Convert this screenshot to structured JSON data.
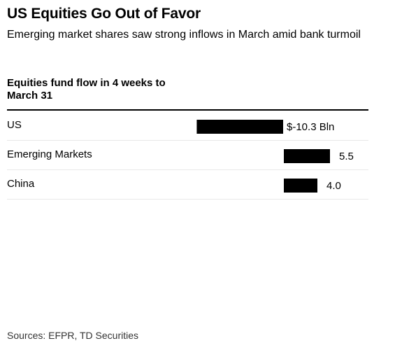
{
  "title": "US Equities Go Out of Favor",
  "subtitle": "Emerging market shares saw strong inflows in March amid bank turmoil",
  "column_header": "Equities fund flow in 4 weeks to March 31",
  "sources": "Sources: EFPR, TD Securities",
  "colors": {
    "bar": "#000000",
    "text": "#000000",
    "rule": "#000000"
  },
  "chart_data": {
    "type": "bar",
    "orientation": "horizontal",
    "title": "Equities fund flow in 4 weeks to March 31",
    "categories": [
      "US",
      "Emerging Markets",
      "China"
    ],
    "values": [
      -10.3,
      5.5,
      4.0
    ],
    "value_labels": [
      "$-10.3 Bln",
      "5.5",
      "4.0"
    ],
    "unit": "Bln",
    "xlim": [
      -10.3,
      5.5
    ],
    "grid": false,
    "legend": "none"
  }
}
